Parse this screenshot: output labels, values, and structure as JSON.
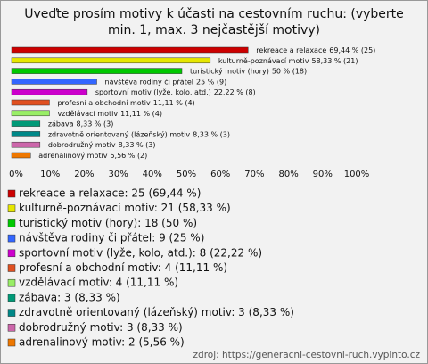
{
  "chart_data": {
    "type": "hbar",
    "title": "Uveďte prosím motivy k účasti na cestovním ruchu: (vyberte min. 1, max. 3 nejčastější motivy)",
    "categories": [
      "rekreace a relaxace",
      "kulturně-poznávací motiv",
      "turistický motiv (hory)",
      "návštěva rodiny či přátel",
      "sportovní motiv (lyže, kolo, atd.)",
      "profesní a obchodní motiv",
      "vzdělávací motiv",
      "zábava",
      "zdravotně orientovaný (lázeňský) motiv",
      "dobrodružný motiv",
      "adrenalinový motiv"
    ],
    "values": [
      69.44,
      58.33,
      50,
      25,
      22.22,
      11.11,
      11.11,
      8.33,
      8.33,
      8.33,
      5.56
    ],
    "value_labels": [
      "69,44 % (25)",
      "58,33 % (21)",
      "50 % (18)",
      "25 % (9)",
      "22,22 % (8)",
      "11,11 % (4)",
      "11,11 % (4)",
      "8,33 % (3)",
      "8,33 % (3)",
      "8,33 % (3)",
      "5,56 % (2)"
    ],
    "legend_labels": [
      "rekreace a relaxace: 25 (69,44 %)",
      "kulturně-poznávací motiv: 21 (58,33 %)",
      "turistický motiv (hory): 18 (50 %)",
      "návštěva rodiny či přátel: 9 (25 %)",
      "sportovní motiv (lyže, kolo, atd.): 8 (22,22 %)",
      "profesní a obchodní motiv: 4 (11,11 %)",
      "vzdělávací motiv: 4 (11,11 %)",
      "zábava: 3 (8,33 %)",
      "zdravotně orientovaný (lázeňský) motiv: 3 (8,33 %)",
      "dobrodružný motiv: 3 (8,33 %)",
      "adrenalinový motiv: 2 (5,56 %)"
    ],
    "colors": [
      "#cc0000",
      "#e6e600",
      "#00c800",
      "#3366ff",
      "#cc00cc",
      "#e05020",
      "#99ee66",
      "#009977",
      "#008888",
      "#cc66aa",
      "#ee7700"
    ],
    "xlim": [
      0,
      100
    ],
    "xticks": [
      {
        "value": 0,
        "label": "0%"
      },
      {
        "value": 10,
        "label": "10%"
      },
      {
        "value": 20,
        "label": "20%"
      },
      {
        "value": 30,
        "label": "30%"
      },
      {
        "value": 40,
        "label": "40%"
      },
      {
        "value": 50,
        "label": "50%"
      },
      {
        "value": 60,
        "label": "60%"
      },
      {
        "value": 70,
        "label": "70%"
      },
      {
        "value": 80,
        "label": "80%"
      },
      {
        "value": 90,
        "label": "90%"
      },
      {
        "value": 100,
        "label": "100%"
      }
    ],
    "source": "zdroj: https://generacni-cestovni-ruch.vyplnto.cz"
  }
}
